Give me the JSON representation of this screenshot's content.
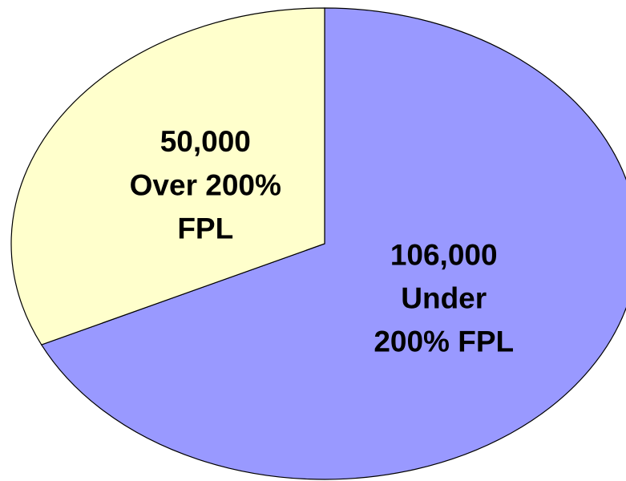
{
  "chart_data": {
    "type": "pie",
    "categories": [
      "Under\n200% FPL",
      "Over 200%\nFPL"
    ],
    "values": [
      106000,
      50000
    ],
    "value_labels": [
      "106,000",
      "50,000"
    ],
    "colors": [
      "#9999ff",
      "#ffffcc"
    ]
  }
}
